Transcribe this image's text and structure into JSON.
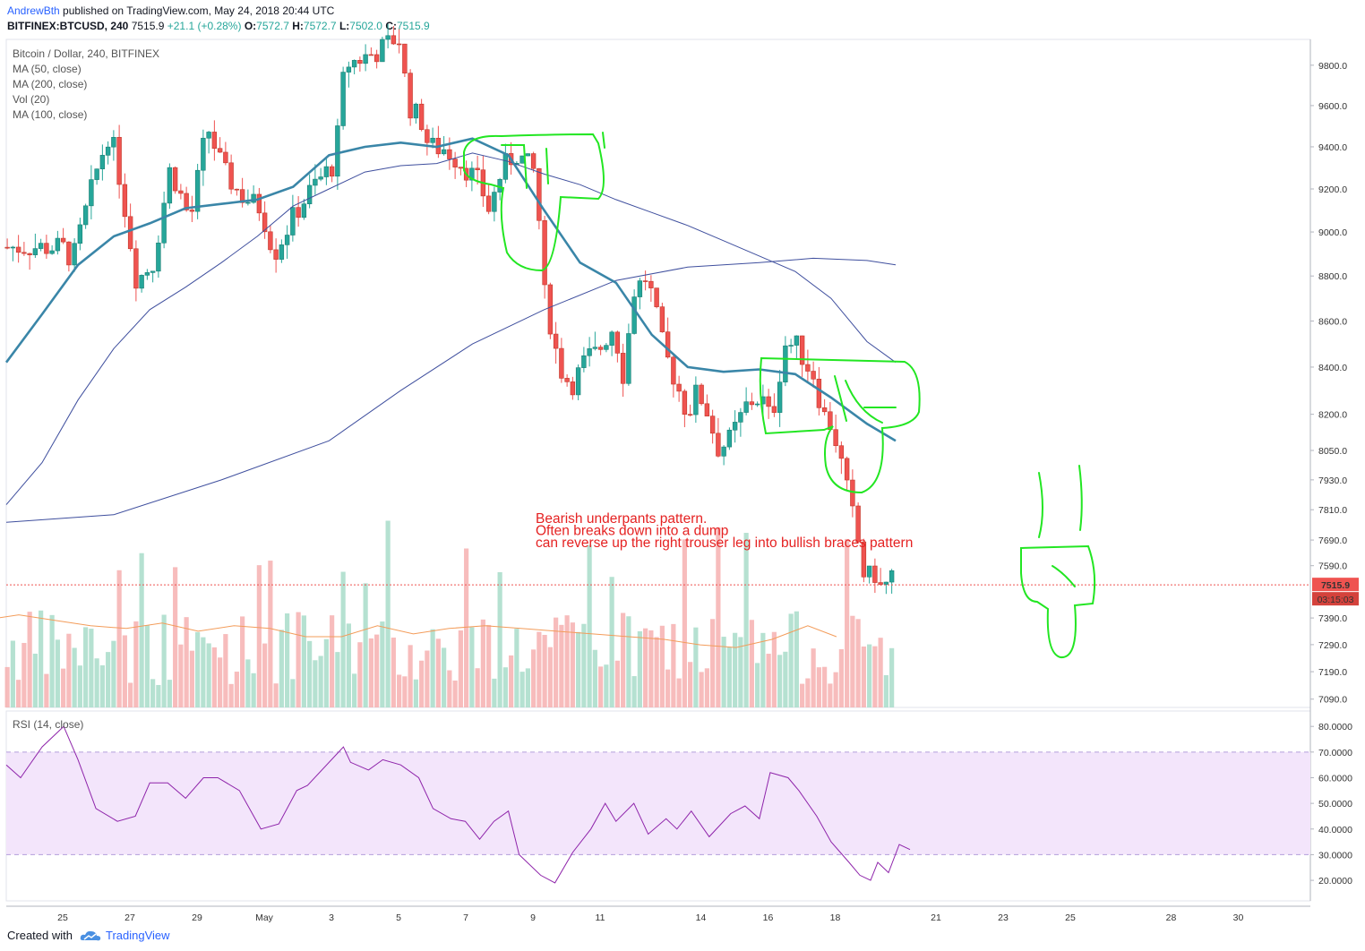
{
  "header": {
    "author": "AndrewBth",
    "published_text": "published on TradingView.com, May 24, 2018 20:44 UTC",
    "symbol": "BITFINEX:BTCUSD, 240",
    "last": "7515.9",
    "change": "+21.1 (+0.28%)",
    "ohlc": {
      "o": "7572.7",
      "h": "7572.7",
      "l": "7502.0",
      "c": "7515.9"
    },
    "ohlc_labels": {
      "o": "O:",
      "h": "H:",
      "l": "L:",
      "c": "C:"
    }
  },
  "legend": [
    "Bitcoin / Dollar, 240, BITFINEX",
    "MA (50, close)",
    "MA (200, close)",
    "Vol (20)",
    "MA (100, close)"
  ],
  "rsi_legend": "RSI (14, close)",
  "price_badge": "7515.9",
  "timer_badge": "03:15:03",
  "annotation": [
    "Bearish underpants pattern.",
    "Often breaks down into a dump",
    "can reverse up the right trouser leg into bullish braces pattern"
  ],
  "footer": {
    "created_with": "Created with",
    "brand": "TradingView"
  },
  "colors": {
    "up": "#26a69a",
    "down": "#ef5350",
    "ma50": "#3a86a8",
    "ma200": "#3f4f9e",
    "rsi": "#8e24aa",
    "rsi_band": "#f3e5fb",
    "annotation": "#e52222",
    "marker": "#22e622"
  },
  "chart_data": [
    {
      "type": "candlestick",
      "title": "Bitcoin / Dollar, 240, BITFINEX",
      "y_axis": {
        "labels": [
          "9800.0",
          "9600.0",
          "9400.0",
          "9200.0",
          "9000.0",
          "8800.0",
          "8600.0",
          "8400.0",
          "8200.0",
          "8050.0",
          "7930.0",
          "7810.0",
          "7690.0",
          "7590.0",
          "7390.0",
          "7290.0",
          "7190.0",
          "7090.0"
        ],
        "scale": "log"
      },
      "x_axis": {
        "labels": [
          "25",
          "27",
          "29",
          "May",
          "3",
          "5",
          "7",
          "9",
          "11",
          "14",
          "16",
          "18",
          "21",
          "23",
          "25",
          "28",
          "30"
        ]
      },
      "price_path": [
        [
          0,
          8930
        ],
        [
          0.3,
          8870
        ],
        [
          1,
          9280
        ],
        [
          1.4,
          9480
        ],
        [
          1.7,
          9250
        ],
        [
          2.2,
          8780
        ],
        [
          2.7,
          8860
        ],
        [
          3.2,
          9300
        ],
        [
          3.8,
          9050
        ],
        [
          4.3,
          9500
        ],
        [
          4.8,
          9280
        ],
        [
          5.3,
          9170
        ],
        [
          5.9,
          9110
        ],
        [
          6.3,
          8900
        ],
        [
          6.9,
          9080
        ],
        [
          7.5,
          9220
        ],
        [
          8.1,
          9320
        ],
        [
          8.4,
          9800
        ],
        [
          9.4,
          9870
        ],
        [
          10,
          9950
        ],
        [
          10.3,
          9600
        ],
        [
          10.7,
          9520
        ],
        [
          10.9,
          9400
        ],
        [
          11.4,
          9390
        ],
        [
          11.8,
          9330
        ],
        [
          12.1,
          9280
        ],
        [
          12.4,
          9230
        ],
        [
          12.7,
          9100
        ],
        [
          13.1,
          9300
        ],
        [
          13.5,
          9370
        ],
        [
          13.8,
          9320
        ],
        [
          14.1,
          9270
        ],
        [
          14.3,
          8750
        ],
        [
          14.7,
          8460
        ],
        [
          14.9,
          8360
        ],
        [
          15.2,
          8330
        ],
        [
          15.6,
          8440
        ],
        [
          15.9,
          8460
        ],
        [
          16.4,
          8580
        ],
        [
          16.7,
          8360
        ],
        [
          17,
          8730
        ],
        [
          17.4,
          8800
        ],
        [
          17.9,
          8470
        ],
        [
          18.3,
          8320
        ],
        [
          18.6,
          8200
        ],
        [
          18.9,
          8300
        ],
        [
          19.2,
          8210
        ],
        [
          19.5,
          8060
        ],
        [
          19.8,
          8080
        ],
        [
          20.1,
          8160
        ],
        [
          20.4,
          8250
        ],
        [
          20.8,
          8270
        ],
        [
          21.1,
          8170
        ],
        [
          21.5,
          8500
        ],
        [
          21.9,
          8490
        ],
        [
          22.1,
          8420
        ],
        [
          22.4,
          8360
        ],
        [
          22.6,
          8210
        ],
        [
          22.9,
          8150
        ],
        [
          23.1,
          8050
        ],
        [
          23.3,
          7920
        ],
        [
          23.5,
          7800
        ],
        [
          23.7,
          7670
        ],
        [
          23.85,
          7560
        ],
        [
          24.1,
          7540
        ],
        [
          24.3,
          7580
        ],
        [
          24.4,
          7430
        ],
        [
          24.6,
          7580
        ],
        [
          24.8,
          7516
        ]
      ],
      "ma50_path": [
        [
          0,
          8420
        ],
        [
          1,
          8630
        ],
        [
          2,
          8850
        ],
        [
          3,
          8980
        ],
        [
          4,
          9040
        ],
        [
          5,
          9110
        ],
        [
          6,
          9130
        ],
        [
          7,
          9150
        ],
        [
          8,
          9210
        ],
        [
          9,
          9360
        ],
        [
          10,
          9400
        ],
        [
          11,
          9420
        ],
        [
          12,
          9400
        ],
        [
          13,
          9440
        ],
        [
          14,
          9360
        ],
        [
          15,
          9100
        ],
        [
          16,
          8860
        ],
        [
          17,
          8770
        ],
        [
          18,
          8540
        ],
        [
          19,
          8400
        ],
        [
          20,
          8380
        ],
        [
          21,
          8390
        ],
        [
          22,
          8370
        ],
        [
          23,
          8270
        ],
        [
          24,
          8160
        ],
        [
          24.8,
          8090
        ]
      ],
      "ma200_path": [
        [
          0,
          7760
        ],
        [
          3,
          7790
        ],
        [
          6,
          7930
        ],
        [
          9,
          8090
        ],
        [
          11,
          8300
        ],
        [
          13,
          8500
        ],
        [
          15,
          8650
        ],
        [
          17,
          8780
        ],
        [
          19,
          8840
        ],
        [
          21,
          8860
        ],
        [
          22.5,
          8880
        ],
        [
          24,
          8870
        ],
        [
          24.8,
          8850
        ]
      ],
      "ma100_path": [
        [
          0,
          7830
        ],
        [
          1,
          8000
        ],
        [
          2,
          8260
        ],
        [
          3,
          8480
        ],
        [
          4,
          8650
        ],
        [
          5,
          8750
        ],
        [
          6,
          8860
        ],
        [
          7,
          8980
        ],
        [
          8,
          9120
        ],
        [
          9,
          9200
        ],
        [
          10,
          9280
        ],
        [
          11,
          9310
        ],
        [
          12,
          9320
        ],
        [
          13,
          9370
        ],
        [
          14,
          9330
        ],
        [
          15,
          9270
        ],
        [
          16,
          9220
        ],
        [
          17,
          9150
        ],
        [
          18,
          9090
        ],
        [
          19,
          9030
        ],
        [
          20,
          8960
        ],
        [
          21,
          8890
        ],
        [
          22,
          8820
        ],
        [
          23,
          8700
        ],
        [
          24,
          8510
        ],
        [
          24.8,
          8420
        ]
      ],
      "last_price": 7515.9
    },
    {
      "type": "line",
      "title": "RSI (14, close)",
      "y_axis": {
        "labels": [
          "80.0000",
          "70.0000",
          "60.0000",
          "50.0000",
          "40.0000",
          "30.0000",
          "20.0000"
        ]
      },
      "bands": [
        30,
        70
      ],
      "rsi_path": [
        [
          0,
          65
        ],
        [
          0.4,
          60
        ],
        [
          1,
          72
        ],
        [
          1.6,
          80
        ],
        [
          2,
          67
        ],
        [
          2.5,
          48
        ],
        [
          3.1,
          43
        ],
        [
          3.6,
          45
        ],
        [
          4,
          58
        ],
        [
          4.5,
          58
        ],
        [
          5,
          52
        ],
        [
          5.5,
          60
        ],
        [
          5.9,
          60
        ],
        [
          6.5,
          55
        ],
        [
          7.1,
          40
        ],
        [
          7.6,
          42
        ],
        [
          8.1,
          55
        ],
        [
          8.4,
          57
        ],
        [
          9.4,
          72
        ],
        [
          9.6,
          66
        ],
        [
          10.1,
          63
        ],
        [
          10.5,
          67
        ],
        [
          11,
          65
        ],
        [
          11.5,
          60
        ],
        [
          11.9,
          48
        ],
        [
          12.4,
          44
        ],
        [
          12.8,
          43
        ],
        [
          13.2,
          36
        ],
        [
          13.6,
          43
        ],
        [
          14,
          47
        ],
        [
          14.3,
          30
        ],
        [
          14.9,
          22
        ],
        [
          15.3,
          19
        ],
        [
          15.8,
          31
        ],
        [
          16.3,
          40
        ],
        [
          16.7,
          50
        ],
        [
          17,
          43
        ],
        [
          17.5,
          50
        ],
        [
          17.9,
          38
        ],
        [
          18.4,
          44
        ],
        [
          18.7,
          40
        ],
        [
          19.1,
          47
        ],
        [
          19.6,
          37
        ],
        [
          20.2,
          46
        ],
        [
          20.6,
          49
        ],
        [
          21,
          44
        ],
        [
          21.3,
          62
        ],
        [
          21.8,
          60
        ],
        [
          22.1,
          55
        ],
        [
          22.6,
          45
        ],
        [
          23,
          35
        ],
        [
          23.5,
          27
        ],
        [
          23.8,
          22
        ],
        [
          24.1,
          20
        ],
        [
          24.3,
          27
        ],
        [
          24.6,
          23
        ],
        [
          24.9,
          34
        ],
        [
          25.2,
          32
        ]
      ]
    },
    {
      "type": "bar",
      "title": "Vol (20)",
      "ma_path": [
        [
          0,
          0.28
        ],
        [
          1,
          0.32
        ],
        [
          2,
          0.34
        ],
        [
          3,
          0.32
        ],
        [
          4,
          0.3
        ],
        [
          5,
          0.29
        ],
        [
          6,
          0.31
        ],
        [
          7,
          0.28
        ],
        [
          8,
          0.3
        ],
        [
          9,
          0.29
        ],
        [
          10,
          0.26
        ],
        [
          11,
          0.26
        ],
        [
          12,
          0.3
        ],
        [
          13,
          0.27
        ],
        [
          14,
          0.29
        ],
        [
          15,
          0.3
        ],
        [
          16,
          0.29
        ],
        [
          17,
          0.28
        ],
        [
          18,
          0.27
        ],
        [
          19,
          0.26
        ],
        [
          20,
          0.25
        ],
        [
          21,
          0.23
        ],
        [
          22,
          0.22
        ],
        [
          23,
          0.25
        ],
        [
          24,
          0.3
        ],
        [
          24.8,
          0.26
        ]
      ]
    }
  ]
}
